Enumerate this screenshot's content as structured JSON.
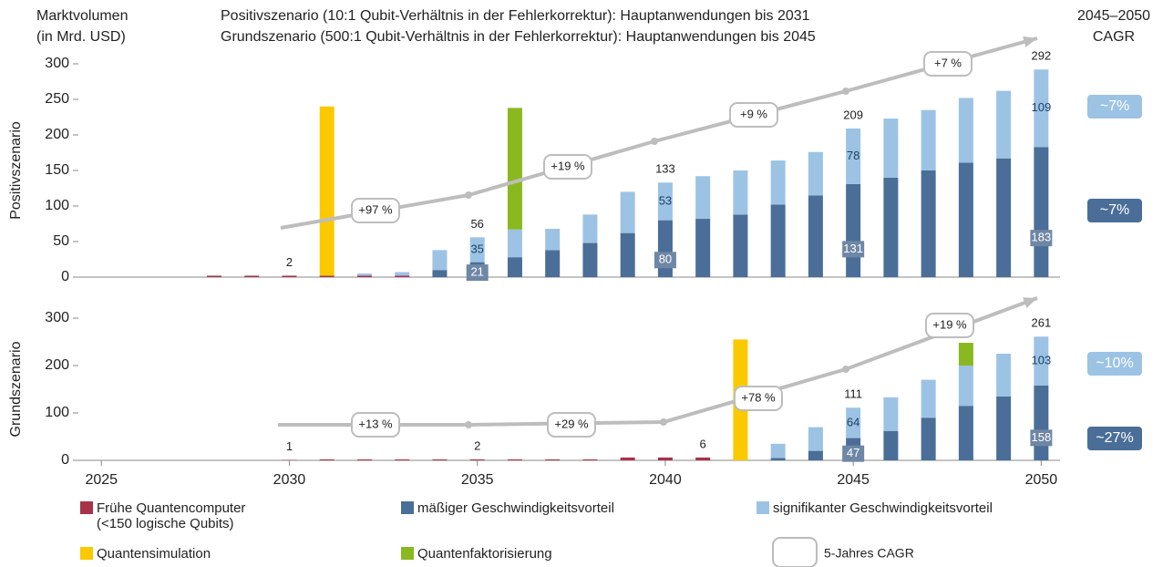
{
  "header": {
    "y_unit_line1": "Marktvolumen",
    "y_unit_line2": "(in Mrd. USD)",
    "scenario_line1": "Positivszenario (10:1 Qubit-Verhältnis in der Fehlerkorrektur): Hauptanwendungen bis 2031",
    "scenario_line2": "Grundszenario (500:1 Qubit-Verhältnis in der Fehlerkorrektur): Hauptanwendungen bis 2045",
    "cagr_line1": "2045–2050",
    "cagr_line2": "CAGR"
  },
  "legend": {
    "cagr": "5-Jahres CAGR"
  },
  "chart_data": [
    {
      "type": "bar",
      "stacked": true,
      "y_label": "Positivszenario",
      "ylim": [
        0,
        300
      ],
      "yticks": [
        0,
        50,
        100,
        150,
        200,
        250,
        300
      ],
      "x": [
        2025,
        2026,
        2027,
        2028,
        2029,
        2030,
        2031,
        2032,
        2033,
        2034,
        2035,
        2036,
        2037,
        2038,
        2039,
        2040,
        2041,
        2042,
        2043,
        2044,
        2045,
        2046,
        2047,
        2048,
        2049,
        2050
      ],
      "series": [
        {
          "name": "Frühe Quantencomputer\n(<150 logische Qubits)",
          "color": "#a8324a",
          "values": [
            0,
            0,
            0,
            2,
            2,
            2,
            2,
            2,
            2,
            0,
            0,
            0,
            0,
            0,
            0,
            0,
            0,
            0,
            0,
            0,
            0,
            0,
            0,
            0,
            0,
            0
          ]
        },
        {
          "name": "mäßiger Geschwindigkeitsvorteil",
          "color": "#4a6e98",
          "values": [
            0,
            0,
            0,
            0,
            0,
            0,
            0,
            0,
            0,
            10,
            21,
            28,
            38,
            48,
            62,
            80,
            82,
            88,
            102,
            115,
            131,
            140,
            150,
            161,
            167,
            183
          ]
        },
        {
          "name": "signifikanter Geschwindigkeitsvorteil",
          "color": "#9cc3e4",
          "values": [
            0,
            0,
            0,
            0,
            0,
            0,
            0,
            3,
            5,
            28,
            35,
            39,
            30,
            40,
            58,
            53,
            60,
            62,
            62,
            61,
            78,
            83,
            85,
            91,
            95,
            109
          ]
        },
        {
          "name": "Quantensimulation",
          "color": "#fbc900",
          "values": [
            0,
            0,
            0,
            0,
            0,
            0,
            238,
            0,
            0,
            0,
            0,
            0,
            0,
            0,
            0,
            0,
            0,
            0,
            0,
            0,
            0,
            0,
            0,
            0,
            0,
            0
          ]
        },
        {
          "name": "Quantenfaktorisierung",
          "color": "#8ab820",
          "values": [
            0,
            0,
            0,
            0,
            0,
            0,
            0,
            0,
            0,
            0,
            0,
            171,
            0,
            0,
            0,
            0,
            0,
            0,
            0,
            0,
            0,
            0,
            0,
            0,
            0,
            0
          ]
        }
      ],
      "totals": [
        null,
        null,
        null,
        null,
        null,
        2,
        null,
        null,
        null,
        null,
        56,
        null,
        null,
        null,
        null,
        133,
        null,
        null,
        null,
        null,
        209,
        null,
        null,
        null,
        null,
        292
      ],
      "cagr_labels": [
        "+97 %",
        "+19 %",
        "+9 %",
        "+7 %"
      ],
      "end_cagr": [
        {
          "label": "~7%",
          "color": "#9cc3e4"
        },
        {
          "label": "~7%",
          "color": "#4a6e98"
        }
      ]
    },
    {
      "type": "bar",
      "stacked": true,
      "y_label": "Grundszenario",
      "ylim": [
        0,
        300
      ],
      "yticks": [
        0,
        100,
        200,
        300
      ],
      "x": [
        2025,
        2026,
        2027,
        2028,
        2029,
        2030,
        2031,
        2032,
        2033,
        2034,
        2035,
        2036,
        2037,
        2038,
        2039,
        2040,
        2041,
        2042,
        2043,
        2044,
        2045,
        2046,
        2047,
        2048,
        2049,
        2050
      ],
      "xlim": [
        2024,
        2050.5
      ],
      "xticks": [
        2025,
        2030,
        2035,
        2040,
        2045,
        2050
      ],
      "series": [
        {
          "color": "#a8324a",
          "values": [
            0,
            0,
            0,
            0,
            0,
            1,
            2,
            2,
            2,
            2,
            2,
            2,
            2,
            2,
            6,
            6,
            6,
            0,
            0,
            0,
            0,
            0,
            0,
            0,
            0,
            0
          ]
        },
        {
          "color": "#4a6e98",
          "values": [
            0,
            0,
            0,
            0,
            0,
            0,
            0,
            0,
            0,
            0,
            0,
            0,
            0,
            0,
            0,
            0,
            0,
            0,
            5,
            20,
            47,
            62,
            90,
            115,
            135,
            158
          ]
        },
        {
          "color": "#9cc3e4",
          "values": [
            0,
            0,
            0,
            0,
            0,
            0,
            0,
            0,
            0,
            0,
            0,
            0,
            0,
            0,
            0,
            0,
            0,
            0,
            30,
            50,
            64,
            71,
            80,
            85,
            90,
            103
          ]
        },
        {
          "color": "#fbc900",
          "values": [
            0,
            0,
            0,
            0,
            0,
            0,
            0,
            0,
            0,
            0,
            0,
            0,
            0,
            0,
            0,
            0,
            0,
            255,
            0,
            0,
            0,
            0,
            0,
            0,
            0,
            0
          ]
        },
        {
          "color": "#8ab820",
          "values": [
            0,
            0,
            0,
            0,
            0,
            0,
            0,
            0,
            0,
            0,
            0,
            0,
            0,
            0,
            0,
            0,
            0,
            0,
            0,
            0,
            0,
            0,
            0,
            48,
            0,
            0
          ]
        }
      ],
      "totals": [
        null,
        null,
        null,
        null,
        null,
        1,
        null,
        null,
        null,
        null,
        2,
        null,
        null,
        null,
        null,
        null,
        6,
        null,
        null,
        null,
        111,
        null,
        null,
        null,
        null,
        261
      ],
      "cagr_labels": [
        "+13 %",
        "+29 %",
        "+78 %",
        "+19 %"
      ],
      "end_cagr": [
        {
          "label": "~10%",
          "color": "#9cc3e4"
        },
        {
          "label": "~27%",
          "color": "#4a6e98"
        }
      ]
    }
  ]
}
